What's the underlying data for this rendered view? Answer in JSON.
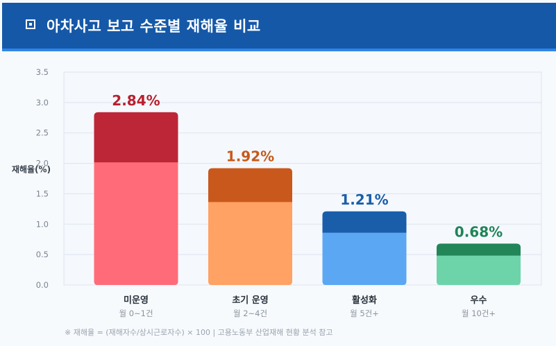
{
  "header": {
    "title": "아차사고 보고 수준별 재해율 비교"
  },
  "chart_data": {
    "type": "bar",
    "ylabel": "재해율(%)",
    "ylim": [
      0,
      3.5
    ],
    "yticks": [
      0.0,
      0.5,
      1.0,
      1.5,
      2.0,
      2.5,
      3.0,
      3.5
    ],
    "ytick_labels": [
      "0.0",
      "0.5",
      "1.0",
      "1.5",
      "2.0",
      "2.5",
      "3.0",
      "3.5"
    ],
    "grid": true,
    "categories": [
      "미운영",
      "초기 운영",
      "활성화",
      "우수"
    ],
    "sublabels": [
      "월 0~1건",
      "월 2~4건",
      "월 5건+",
      "월 10건+"
    ],
    "values": [
      2.84,
      1.92,
      1.21,
      0.68
    ],
    "data_labels": [
      "2.84%",
      "1.92%",
      "1.21%",
      "0.68%"
    ],
    "colors": {
      "fill": [
        "#ff6b78",
        "#ffa263",
        "#5ba7f4",
        "#6dd4a9"
      ],
      "top": [
        "#bd2637",
        "#c9581c",
        "#1a5eaa",
        "#238659"
      ],
      "label": [
        "#b9202f",
        "#c65a1b",
        "#1a5eaa",
        "#1f8457"
      ]
    }
  },
  "footnote": "※ 재해율 = (재해자수/상시근로자수) × 100  |  고용노동부 산업재해 현황 분석 참고"
}
